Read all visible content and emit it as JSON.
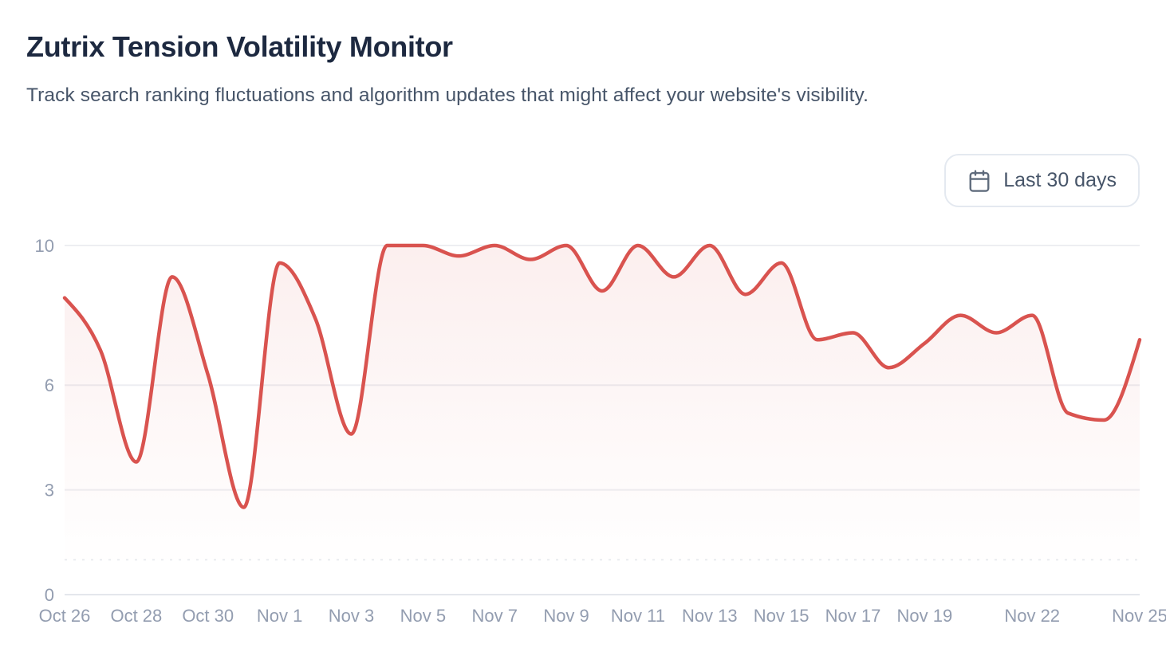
{
  "header": {
    "title": "Zutrix Tension Volatility Monitor",
    "subtitle": "Track search ranking fluctuations and algorithm updates that might affect your website's visibility."
  },
  "controls": {
    "date_range_button": {
      "label": "Last 30 days",
      "icon": "calendar-icon"
    }
  },
  "colors": {
    "line": "#d9534f",
    "area_top": "rgba(217,83,79,0.095)",
    "area_bottom": "rgba(217,83,79,0)",
    "grid": "#edeef2",
    "grid_dashed": "#e9ebef",
    "axis_line": "#e4e7ec",
    "tick_label": "#939db0",
    "title": "#1d2940",
    "subtitle": "#475569"
  },
  "chart_data": {
    "type": "area",
    "title": "Zutrix Tension Volatility Monitor",
    "x": [
      "Oct 26",
      "Oct 27",
      "Oct 28",
      "Oct 29",
      "Oct 30",
      "Oct 31",
      "Nov 1",
      "Nov 2",
      "Nov 3",
      "Nov 4",
      "Nov 5",
      "Nov 6",
      "Nov 7",
      "Nov 8",
      "Nov 9",
      "Nov 10",
      "Nov 11",
      "Nov 12",
      "Nov 13",
      "Nov 14",
      "Nov 15",
      "Nov 16",
      "Nov 17",
      "Nov 18",
      "Nov 19",
      "Nov 20",
      "Nov 21",
      "Nov 22",
      "Nov 23",
      "Nov 24",
      "Nov 25"
    ],
    "values": [
      8.5,
      7.0,
      3.8,
      9.1,
      6.3,
      2.5,
      9.5,
      7.9,
      4.6,
      10,
      10,
      9.7,
      10,
      9.6,
      10,
      8.7,
      10,
      9.1,
      10,
      8.6,
      9.5,
      7.3,
      7.5,
      6.5,
      7.2,
      8.0,
      7.5,
      8.0,
      5.2,
      5.0,
      7.3
    ],
    "x_tick_labels": [
      "Oct 26",
      "Oct 28",
      "Oct 30",
      "Nov 1",
      "Nov 3",
      "Nov 5",
      "Nov 7",
      "Nov 9",
      "Nov 11",
      "Nov 13",
      "Nov 15",
      "Nov 17",
      "Nov 19",
      "Nov 22",
      "Nov 25"
    ],
    "y_ticks_labeled": [
      0,
      3,
      6,
      10
    ],
    "y_gridlines_dashed": [
      1
    ],
    "ylim": [
      0,
      10
    ],
    "xlabel": "",
    "ylabel": "",
    "grid": true,
    "legend": false,
    "line_style": "smooth-monotone"
  }
}
